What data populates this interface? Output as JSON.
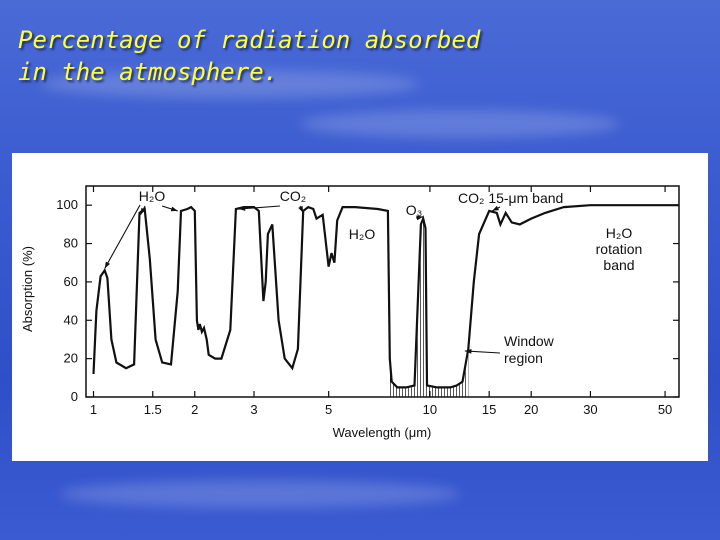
{
  "slide": {
    "title_line1": "Percentage of radiation absorbed",
    "title_line2": "in the atmosphere."
  },
  "colors": {
    "title": "#ffff33",
    "background": "#3a5bd0",
    "plot_line": "#111111"
  },
  "chart_data": {
    "type": "line",
    "title": "",
    "xlabel": "Wavelength (μm)",
    "ylabel": "Absorption (%)",
    "x_scale": "log",
    "xlim": [
      0.95,
      55
    ],
    "ylim": [
      0,
      110
    ],
    "x_ticks": [
      1,
      1.5,
      2,
      3,
      5,
      10,
      15,
      20,
      30,
      50
    ],
    "y_ticks": [
      0,
      20,
      40,
      60,
      80,
      100
    ],
    "grid": false,
    "legend": "none",
    "series": [
      {
        "points": [
          [
            1.0,
            12
          ],
          [
            1.02,
            45
          ],
          [
            1.05,
            63
          ],
          [
            1.08,
            66
          ],
          [
            1.1,
            62
          ],
          [
            1.13,
            30
          ],
          [
            1.17,
            18
          ],
          [
            1.25,
            15
          ],
          [
            1.32,
            17
          ],
          [
            1.37,
            96
          ],
          [
            1.42,
            98
          ],
          [
            1.47,
            72
          ],
          [
            1.53,
            30
          ],
          [
            1.6,
            18
          ],
          [
            1.7,
            17
          ],
          [
            1.78,
            55
          ],
          [
            1.82,
            97
          ],
          [
            1.9,
            98
          ],
          [
            1.95,
            99
          ],
          [
            2.0,
            97
          ],
          [
            2.03,
            40
          ],
          [
            2.05,
            35
          ],
          [
            2.07,
            38
          ],
          [
            2.1,
            34
          ],
          [
            2.13,
            36
          ],
          [
            2.17,
            30
          ],
          [
            2.2,
            22
          ],
          [
            2.3,
            20
          ],
          [
            2.4,
            20
          ],
          [
            2.55,
            35
          ],
          [
            2.65,
            98
          ],
          [
            2.8,
            99
          ],
          [
            3.0,
            99
          ],
          [
            3.1,
            97
          ],
          [
            3.2,
            50
          ],
          [
            3.25,
            60
          ],
          [
            3.3,
            85
          ],
          [
            3.4,
            90
          ],
          [
            3.55,
            40
          ],
          [
            3.7,
            20
          ],
          [
            3.9,
            15
          ],
          [
            4.05,
            25
          ],
          [
            4.2,
            97
          ],
          [
            4.35,
            99
          ],
          [
            4.5,
            98
          ],
          [
            4.6,
            93
          ],
          [
            4.8,
            95
          ],
          [
            5.0,
            68
          ],
          [
            5.1,
            75
          ],
          [
            5.2,
            70
          ],
          [
            5.3,
            92
          ],
          [
            5.5,
            99
          ],
          [
            6.0,
            99
          ],
          [
            7.0,
            98
          ],
          [
            7.5,
            97
          ],
          [
            7.6,
            20
          ],
          [
            7.7,
            8
          ],
          [
            8.0,
            5
          ],
          [
            8.5,
            5
          ],
          [
            9.0,
            6
          ],
          [
            9.4,
            90
          ],
          [
            9.55,
            93
          ],
          [
            9.7,
            88
          ],
          [
            9.8,
            6
          ],
          [
            10.5,
            5
          ],
          [
            11.5,
            5
          ],
          [
            12.0,
            6
          ],
          [
            12.5,
            8
          ],
          [
            13.0,
            25
          ],
          [
            13.5,
            60
          ],
          [
            14.0,
            85
          ],
          [
            15.0,
            97
          ],
          [
            15.8,
            96
          ],
          [
            16.2,
            90
          ],
          [
            16.8,
            96
          ],
          [
            17.5,
            91
          ],
          [
            18.5,
            90
          ],
          [
            20.0,
            93
          ],
          [
            22.0,
            96
          ],
          [
            25.0,
            99
          ],
          [
            30.0,
            100
          ],
          [
            40.0,
            100
          ],
          [
            55.0,
            100
          ]
        ]
      }
    ],
    "annotations": [
      {
        "text": "H₂O",
        "target": "1.1-2.0 μm bands"
      },
      {
        "text": "CO₂",
        "target": "2.7-4.3 μm bands"
      },
      {
        "text": "H₂O",
        "target": "6.3 μm band"
      },
      {
        "text": "O₃",
        "target": "9.6 μm band"
      },
      {
        "text": "CO₂ 15-μm band",
        "target": "15 μm"
      },
      {
        "text": "H₂O",
        "target": "rotation band"
      },
      {
        "text": "rotation",
        "target": "rotation band"
      },
      {
        "text": "band",
        "target": "rotation band"
      },
      {
        "text": "Window",
        "target": "8-13 μm"
      },
      {
        "text": "region",
        "target": "8-13 μm"
      }
    ]
  }
}
